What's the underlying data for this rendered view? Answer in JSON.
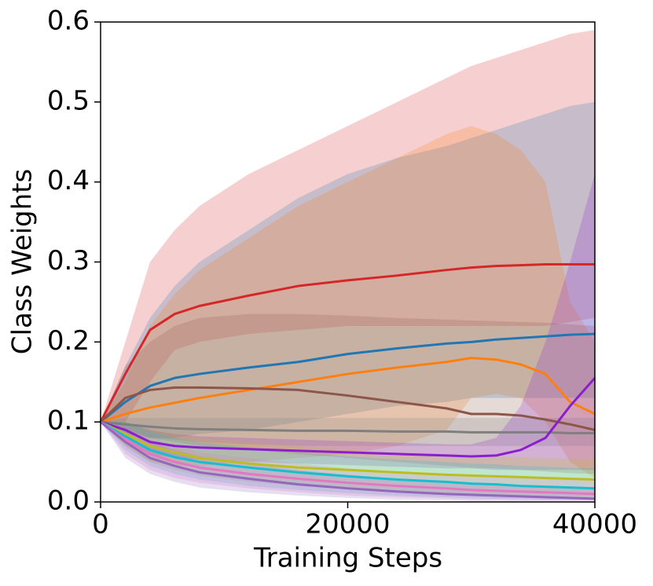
{
  "chart_data": {
    "type": "line",
    "xlabel": "Training Steps",
    "ylabel": "Class Weights",
    "x": [
      0,
      2000,
      4000,
      6000,
      8000,
      12000,
      16000,
      20000,
      24000,
      28000,
      30000,
      32000,
      34000,
      36000,
      38000,
      40000
    ],
    "xlim": [
      0,
      40000
    ],
    "xticks": [
      0,
      20000,
      40000
    ],
    "ylim": [
      0,
      0.6
    ],
    "yticks": [
      {
        "value": 0,
        "label": "0.0"
      },
      0.1,
      0.2,
      0.3,
      0.4,
      0.5,
      0.6
    ],
    "band_opacity": 0.22,
    "series": [
      {
        "color": "#d62728",
        "values": [
          0.1,
          0.16,
          0.215,
          0.235,
          0.245,
          0.258,
          0.27,
          0.277,
          0.283,
          0.29,
          0.293,
          0.295,
          0.296,
          0.297,
          0.297,
          0.297
        ],
        "upper": [
          0.1,
          0.2,
          0.3,
          0.34,
          0.37,
          0.41,
          0.44,
          0.47,
          0.5,
          0.53,
          0.545,
          0.555,
          0.565,
          0.575,
          0.585,
          0.59
        ],
        "lower": [
          0.1,
          0.1,
          0.15,
          0.19,
          0.2,
          0.21,
          0.215,
          0.22,
          0.22,
          0.22,
          0.22,
          0.22,
          0.22,
          0.22,
          0.225,
          0.23
        ]
      },
      {
        "color": "#1f77b4",
        "values": [
          0.1,
          0.125,
          0.145,
          0.155,
          0.16,
          0.168,
          0.175,
          0.185,
          0.192,
          0.198,
          0.2,
          0.203,
          0.205,
          0.207,
          0.209,
          0.21
        ],
        "upper": [
          0.1,
          0.17,
          0.23,
          0.27,
          0.3,
          0.34,
          0.38,
          0.41,
          0.43,
          0.445,
          0.455,
          0.465,
          0.475,
          0.485,
          0.495,
          0.5
        ],
        "lower": [
          0.1,
          0.09,
          0.08,
          0.08,
          0.085,
          0.09,
          0.1,
          0.11,
          0.12,
          0.125,
          0.13,
          0.13,
          0.13,
          0.13,
          0.13,
          0.13
        ]
      },
      {
        "color": "#ff7f0e",
        "values": [
          0.1,
          0.11,
          0.118,
          0.124,
          0.13,
          0.14,
          0.15,
          0.16,
          0.168,
          0.175,
          0.18,
          0.178,
          0.172,
          0.16,
          0.125,
          0.11
        ],
        "upper": [
          0.1,
          0.15,
          0.22,
          0.26,
          0.29,
          0.33,
          0.37,
          0.4,
          0.43,
          0.46,
          0.47,
          0.46,
          0.44,
          0.4,
          0.25,
          0.2
        ],
        "lower": [
          0.1,
          0.07,
          0.05,
          0.045,
          0.045,
          0.05,
          0.055,
          0.06,
          0.07,
          0.09,
          0.13,
          0.135,
          0.13,
          0.1,
          0.05,
          0.03
        ]
      },
      {
        "color": "#8c564b",
        "values": [
          0.1,
          0.13,
          0.14,
          0.143,
          0.143,
          0.142,
          0.14,
          0.133,
          0.125,
          0.117,
          0.11,
          0.11,
          0.108,
          0.103,
          0.097,
          0.09
        ],
        "upper": [
          0.1,
          0.17,
          0.2,
          0.22,
          0.23,
          0.235,
          0.235,
          0.233,
          0.23,
          0.228,
          0.227,
          0.226,
          0.225,
          0.224,
          0.222,
          0.22
        ],
        "lower": [
          0.1,
          0.09,
          0.08,
          0.075,
          0.07,
          0.065,
          0.06,
          0.055,
          0.05,
          0.045,
          0.043,
          0.042,
          0.04,
          0.038,
          0.036,
          0.035
        ]
      },
      {
        "color": "#7f7f7f",
        "values": [
          0.1,
          0.097,
          0.094,
          0.092,
          0.091,
          0.09,
          0.089,
          0.089,
          0.088,
          0.088,
          0.087,
          0.087,
          0.087,
          0.087,
          0.086,
          0.086
        ],
        "upper": [
          0.1,
          0.105,
          0.105,
          0.105,
          0.105,
          0.105,
          0.105,
          0.105,
          0.105,
          0.105,
          0.105,
          0.105,
          0.105,
          0.105,
          0.105,
          0.105
        ],
        "lower": [
          0.1,
          0.085,
          0.08,
          0.078,
          0.075,
          0.072,
          0.07,
          0.07,
          0.07,
          0.07,
          0.07,
          0.07,
          0.07,
          0.07,
          0.07,
          0.07
        ]
      },
      {
        "color": "#8b1fd0",
        "values": [
          0.1,
          0.09,
          0.075,
          0.07,
          0.068,
          0.066,
          0.064,
          0.062,
          0.06,
          0.058,
          0.057,
          0.058,
          0.065,
          0.08,
          0.12,
          0.155
        ],
        "upper": [
          0.1,
          0.1,
          0.09,
          0.085,
          0.082,
          0.08,
          0.078,
          0.076,
          0.074,
          0.072,
          0.072,
          0.08,
          0.12,
          0.2,
          0.3,
          0.41
        ],
        "lower": [
          0.1,
          0.08,
          0.06,
          0.055,
          0.053,
          0.05,
          0.048,
          0.046,
          0.044,
          0.042,
          0.042,
          0.04,
          0.04,
          0.04,
          0.04,
          0.04
        ]
      },
      {
        "color": "#bcbd22",
        "values": [
          0.1,
          0.085,
          0.07,
          0.062,
          0.055,
          0.048,
          0.043,
          0.04,
          0.037,
          0.034,
          0.033,
          0.032,
          0.031,
          0.03,
          0.029,
          0.028
        ],
        "upper": [
          0.1,
          0.1,
          0.09,
          0.085,
          0.08,
          0.075,
          0.07,
          0.065,
          0.062,
          0.06,
          0.058,
          0.057,
          0.056,
          0.055,
          0.054,
          0.053
        ],
        "lower": [
          0.1,
          0.07,
          0.05,
          0.04,
          0.033,
          0.025,
          0.02,
          0.016,
          0.013,
          0.01,
          0.009,
          0.008,
          0.007,
          0.006,
          0.005,
          0.005
        ]
      },
      {
        "color": "#17becf",
        "values": [
          0.1,
          0.082,
          0.065,
          0.056,
          0.05,
          0.043,
          0.037,
          0.032,
          0.028,
          0.025,
          0.023,
          0.022,
          0.02,
          0.019,
          0.018,
          0.017
        ],
        "upper": [
          0.1,
          0.1,
          0.088,
          0.08,
          0.075,
          0.068,
          0.062,
          0.057,
          0.053,
          0.05,
          0.048,
          0.047,
          0.045,
          0.044,
          0.043,
          0.042
        ],
        "lower": [
          0.1,
          0.065,
          0.045,
          0.035,
          0.028,
          0.02,
          0.015,
          0.011,
          0.008,
          0.006,
          0.005,
          0.004,
          0.004,
          0.003,
          0.003,
          0.003
        ]
      },
      {
        "color": "#e377c2",
        "values": [
          0.1,
          0.078,
          0.06,
          0.05,
          0.043,
          0.035,
          0.029,
          0.024,
          0.02,
          0.017,
          0.015,
          0.014,
          0.013,
          0.012,
          0.011,
          0.01
        ],
        "upper": [
          0.1,
          0.095,
          0.08,
          0.07,
          0.062,
          0.055,
          0.048,
          0.042,
          0.038,
          0.034,
          0.032,
          0.031,
          0.03,
          0.029,
          0.028,
          0.027
        ],
        "lower": [
          0.1,
          0.06,
          0.04,
          0.03,
          0.024,
          0.017,
          0.012,
          0.008,
          0.006,
          0.004,
          0.003,
          0.003,
          0.002,
          0.002,
          0.002,
          0.002
        ]
      },
      {
        "color": "#9467bd",
        "values": [
          0.1,
          0.075,
          0.055,
          0.045,
          0.037,
          0.029,
          0.022,
          0.017,
          0.013,
          0.01,
          0.009,
          0.008,
          0.007,
          0.006,
          0.005,
          0.004
        ],
        "upper": [
          0.1,
          0.09,
          0.075,
          0.065,
          0.057,
          0.048,
          0.04,
          0.034,
          0.029,
          0.025,
          0.023,
          0.022,
          0.02,
          0.019,
          0.018,
          0.017
        ],
        "lower": [
          0.1,
          0.055,
          0.035,
          0.025,
          0.018,
          0.012,
          0.008,
          0.005,
          0.003,
          0.002,
          0.001,
          0.001,
          0.001,
          0.001,
          0.001,
          0.001
        ]
      }
    ]
  }
}
